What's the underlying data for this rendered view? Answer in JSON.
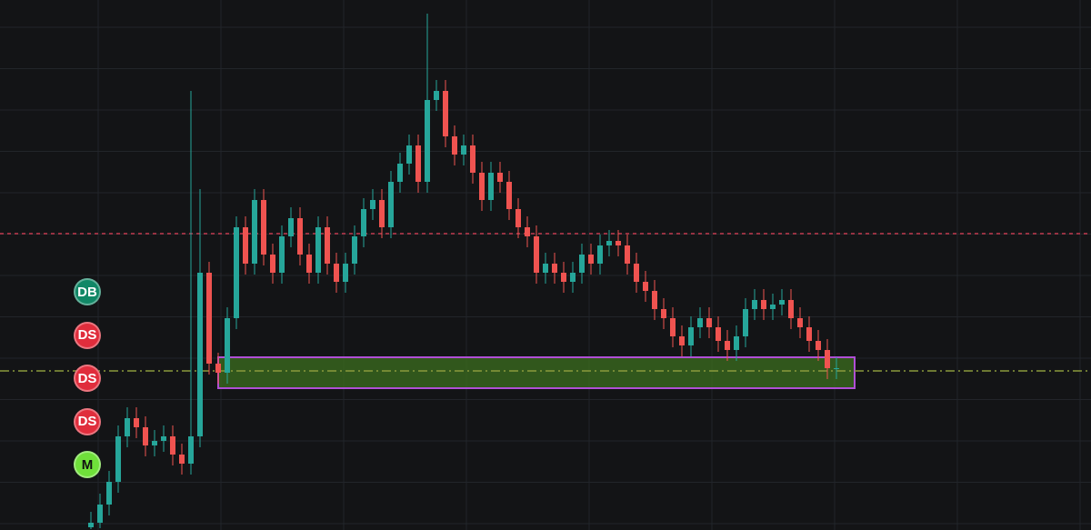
{
  "chart_data": {
    "type": "candlestick",
    "ylim": [
      0,
      583
    ],
    "up_color": "#26a69a",
    "down_color": "#ef5350",
    "open": [
      3,
      8,
      28,
      53,
      103,
      123,
      113,
      93,
      98,
      103,
      83,
      73,
      103,
      283,
      183,
      173,
      233,
      333,
      293,
      363,
      303,
      283,
      323,
      343,
      303,
      283,
      333,
      293,
      273,
      293,
      323,
      353,
      363,
      333,
      383,
      403,
      423,
      383,
      473,
      483,
      433,
      413,
      423,
      393,
      363,
      393,
      383,
      353,
      333,
      323,
      283,
      293,
      283,
      273,
      283,
      303,
      293,
      313,
      318,
      313,
      293,
      273,
      263,
      243,
      233,
      213,
      203,
      223,
      233,
      223,
      208,
      198,
      213,
      243,
      253,
      243,
      248,
      253,
      233,
      223,
      208,
      198,
      178
    ],
    "high": [
      20,
      40,
      65,
      115,
      135,
      135,
      125,
      110,
      115,
      115,
      95,
      483,
      375,
      295,
      195,
      245,
      345,
      345,
      375,
      375,
      315,
      335,
      355,
      355,
      315,
      345,
      345,
      305,
      305,
      335,
      365,
      375,
      375,
      395,
      415,
      435,
      435,
      568,
      495,
      495,
      445,
      435,
      435,
      405,
      405,
      405,
      395,
      365,
      345,
      335,
      305,
      305,
      295,
      295,
      315,
      315,
      325,
      330,
      330,
      325,
      305,
      285,
      275,
      255,
      245,
      225,
      235,
      245,
      245,
      235,
      220,
      225,
      255,
      265,
      265,
      260,
      265,
      265,
      245,
      235,
      220,
      210,
      190
    ],
    "low": [
      1,
      2,
      16,
      41,
      91,
      101,
      81,
      81,
      86,
      71,
      61,
      61,
      91,
      171,
      161,
      161,
      221,
      281,
      281,
      291,
      271,
      271,
      311,
      291,
      271,
      271,
      281,
      261,
      261,
      281,
      311,
      341,
      321,
      321,
      371,
      391,
      371,
      371,
      461,
      421,
      401,
      401,
      381,
      351,
      351,
      371,
      341,
      321,
      311,
      271,
      271,
      271,
      261,
      261,
      271,
      281,
      281,
      301,
      301,
      281,
      261,
      251,
      231,
      221,
      201,
      191,
      191,
      211,
      211,
      196,
      186,
      186,
      201,
      231,
      231,
      231,
      236,
      221,
      211,
      196,
      186,
      166,
      166
    ],
    "close": [
      8,
      28,
      53,
      103,
      123,
      113,
      93,
      98,
      103,
      83,
      73,
      103,
      283,
      183,
      173,
      233,
      333,
      293,
      363,
      303,
      283,
      323,
      343,
      303,
      283,
      333,
      293,
      273,
      293,
      323,
      353,
      363,
      333,
      383,
      403,
      423,
      383,
      473,
      483,
      433,
      413,
      423,
      393,
      363,
      393,
      383,
      353,
      333,
      323,
      283,
      293,
      283,
      273,
      283,
      303,
      293,
      313,
      318,
      313,
      293,
      273,
      263,
      243,
      233,
      213,
      203,
      223,
      233,
      223,
      208,
      198,
      213,
      243,
      253,
      243,
      248,
      253,
      233,
      223,
      208,
      198,
      178,
      178
    ],
    "levels": [
      {
        "value": 326,
        "color": "#c23a4e",
        "dash": "4 4"
      },
      {
        "value": 175,
        "color": "#8a9a3c",
        "dash": "10 4 2 4"
      }
    ],
    "zone": {
      "low": 156,
      "high": 190,
      "start": 14,
      "end": 84,
      "fill": "#3c6e1f",
      "border": "#b04fd6"
    },
    "signals": [
      {
        "label": "DB",
        "color": "#118766"
      },
      {
        "label": "DS",
        "color": "#e02d3c"
      },
      {
        "label": "DS",
        "color": "#e02d3c"
      },
      {
        "label": "DS",
        "color": "#e02d3c"
      },
      {
        "label": "M",
        "color": "#6fe03a"
      }
    ]
  }
}
